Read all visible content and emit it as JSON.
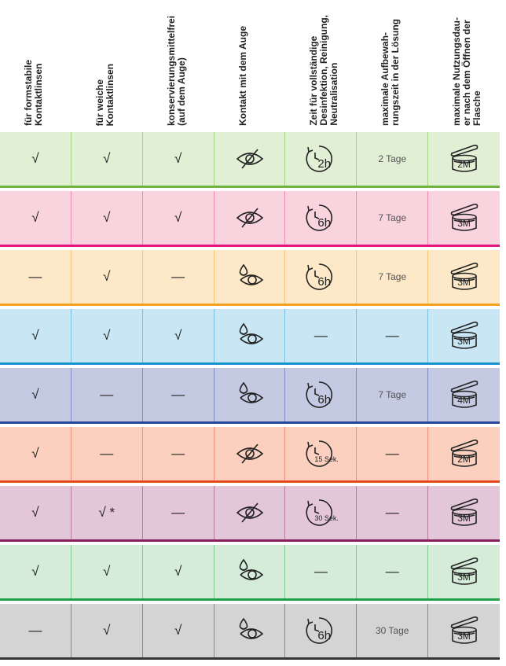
{
  "headers": [
    [
      "für formstabile",
      "Kontaktlinsen"
    ],
    [
      "für weiche",
      "Kontaktlinsen"
    ],
    [
      "konservierungsmittelfrei",
      "(auf dem Auge)"
    ],
    [
      "Kontakt mit dem Auge"
    ],
    [
      "Zeit für vollständige",
      "Desinfektion, Reinigung,",
      "Neutralisation"
    ],
    [
      "maximale Aufbewah-",
      "rungszeit in der Lösung"
    ],
    [
      "maximale Nutzungsdau-",
      "er nach dem Öffnen der",
      "Flasche"
    ]
  ],
  "rows": [
    {
      "cells": [
        "√",
        "√",
        "√",
        "2h",
        "2 Tage",
        "2M"
      ]
    },
    {
      "cells": [
        "√",
        "√",
        "√",
        "6h",
        "7 Tage",
        "3M"
      ]
    },
    {
      "cells": [
        "—",
        "√",
        "—",
        "6h",
        "7 Tage",
        "3M"
      ]
    },
    {
      "cells": [
        "√",
        "√",
        "√",
        "—",
        "—",
        "3M"
      ]
    },
    {
      "cells": [
        "√",
        "—",
        "—",
        "6h",
        "7 Tage",
        "4M"
      ]
    },
    {
      "cells": [
        "√",
        "—",
        "—",
        "15 Sek.",
        "—",
        "2M"
      ]
    },
    {
      "cells": [
        "√",
        "√ *",
        "—",
        "30 Sek.",
        "—",
        "3M"
      ]
    },
    {
      "cells": [
        "√",
        "√",
        "√",
        "—",
        "—",
        "3M"
      ]
    },
    {
      "cells": [
        "—",
        "√",
        "√",
        "6h",
        "30 Tage",
        "3M"
      ]
    }
  ]
}
